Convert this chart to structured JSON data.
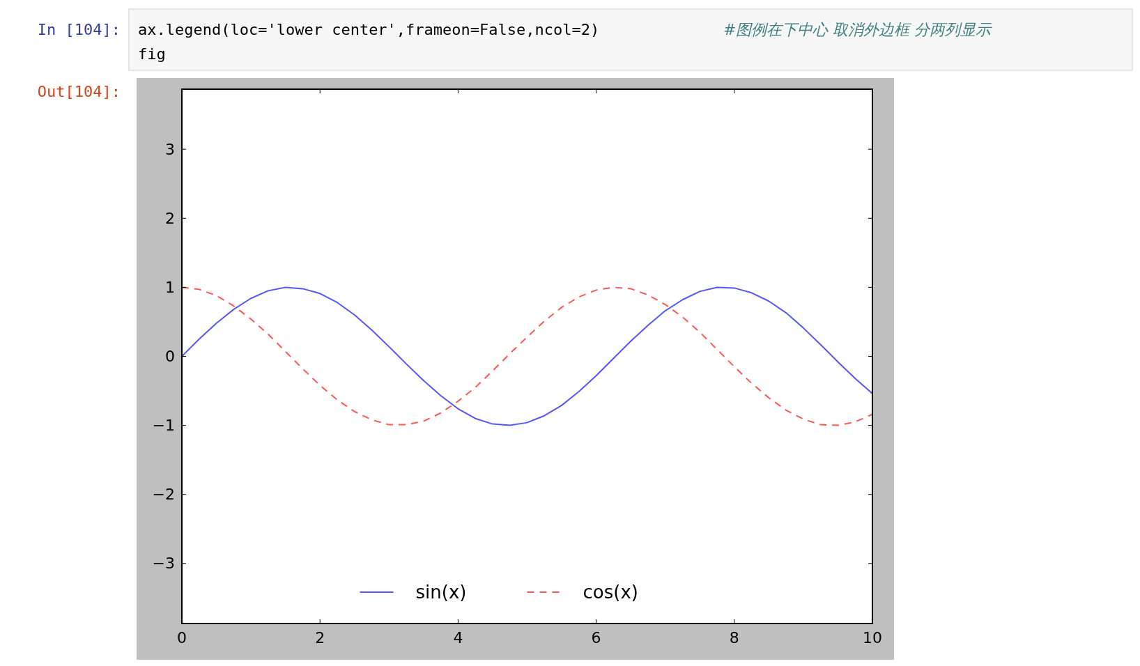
{
  "chart_data": {
    "type": "line",
    "annotations": [
      "In [104]:",
      "ax.legend(loc='lower center',frameon=False,ncol=2)",
      "#图例在下中心  取消外边框    分两列显示",
      "fig",
      "Out[104]:"
    ],
    "x": [
      0,
      0.25,
      0.5,
      0.75,
      1,
      1.25,
      1.5,
      1.75,
      2,
      2.25,
      2.5,
      2.75,
      3,
      3.25,
      3.5,
      3.75,
      4,
      4.25,
      4.5,
      4.75,
      5,
      5.25,
      5.5,
      5.75,
      6,
      6.25,
      6.5,
      6.75,
      7,
      7.25,
      7.5,
      7.75,
      8,
      8.25,
      8.5,
      8.75,
      9,
      9.25,
      9.5,
      9.75,
      10
    ],
    "series": [
      {
        "name": "sin(x)",
        "color": "#5555ff",
        "line_style": "solid",
        "values": [
          0,
          0.25,
          0.48,
          0.68,
          0.84,
          0.95,
          1.0,
          0.98,
          0.91,
          0.78,
          0.6,
          0.38,
          0.14,
          -0.11,
          -0.35,
          -0.57,
          -0.76,
          -0.9,
          -0.98,
          -1.0,
          -0.96,
          -0.86,
          -0.71,
          -0.51,
          -0.28,
          -0.03,
          0.22,
          0.45,
          0.66,
          0.82,
          0.94,
          1.0,
          0.99,
          0.92,
          0.8,
          0.63,
          0.41,
          0.17,
          -0.08,
          -0.32,
          -0.54
        ]
      },
      {
        "name": "cos(x)",
        "color": "#ff5555",
        "line_style": "dashed",
        "values": [
          1,
          0.97,
          0.88,
          0.73,
          0.54,
          0.32,
          0.07,
          -0.18,
          -0.42,
          -0.63,
          -0.8,
          -0.92,
          -0.99,
          -0.99,
          -0.94,
          -0.82,
          -0.65,
          -0.45,
          -0.21,
          0.04,
          0.28,
          0.51,
          0.71,
          0.86,
          0.96,
          1.0,
          0.98,
          0.89,
          0.75,
          0.57,
          0.35,
          0.1,
          -0.15,
          -0.39,
          -0.6,
          -0.78,
          -0.91,
          -0.99,
          -1.0,
          -0.95,
          -0.84
        ]
      }
    ],
    "xlim": [
      0,
      10
    ],
    "xticks": [
      0,
      2,
      4,
      6,
      8,
      10
    ],
    "ylim": [
      -3.87,
      3.87
    ],
    "yticks": [
      -3,
      -2,
      -1,
      0,
      1,
      2,
      3
    ],
    "legend": "bottom",
    "grid": false
  }
}
